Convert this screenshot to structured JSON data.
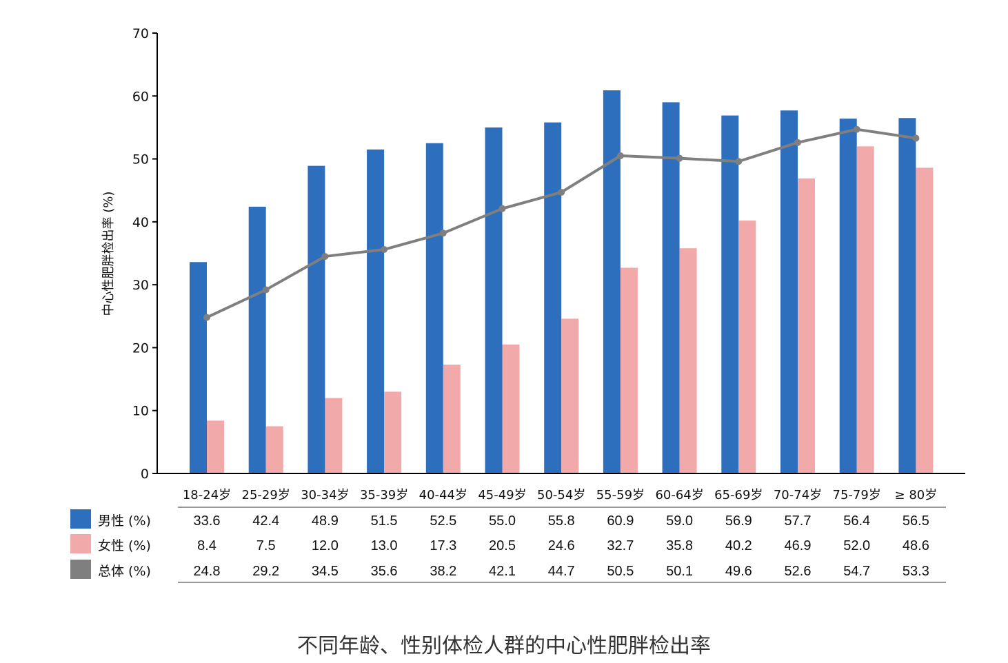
{
  "caption": "不同年龄、性别体检人群的中心性肥胖检出率",
  "colors": {
    "male": "#2e6fbd",
    "female": "#f2a9a9",
    "total": "#7f7f7f",
    "axis": "#000000"
  },
  "chart_data": {
    "type": "bar",
    "title": "",
    "xlabel": "",
    "ylabel": "中心性肥胖检出率 (%)",
    "ylim": [
      0,
      70
    ],
    "yticks": [
      0,
      10,
      20,
      30,
      40,
      50,
      60,
      70
    ],
    "categories": [
      "18-24岁",
      "25-29岁",
      "30-34岁",
      "35-39岁",
      "40-44岁",
      "45-49岁",
      "50-54岁",
      "55-59岁",
      "60-64岁",
      "65-69岁",
      "70-74岁",
      "75-79岁",
      "≥ 80岁"
    ],
    "series": [
      {
        "name": "男性 (%)",
        "kind": "bar",
        "values": [
          33.6,
          42.4,
          48.9,
          51.5,
          52.5,
          55.0,
          55.8,
          60.9,
          59.0,
          56.9,
          57.7,
          56.4,
          56.5
        ]
      },
      {
        "name": "女性 (%)",
        "kind": "bar",
        "values": [
          8.4,
          7.5,
          12.0,
          13.0,
          17.3,
          20.5,
          24.6,
          32.7,
          35.8,
          40.2,
          46.9,
          52.0,
          48.6
        ]
      },
      {
        "name": "总体 (%)",
        "kind": "line",
        "values": [
          24.8,
          29.2,
          34.5,
          35.6,
          38.2,
          42.1,
          44.7,
          50.5,
          50.1,
          49.6,
          52.6,
          54.7,
          53.3
        ]
      }
    ],
    "grid": false,
    "legend": "bottom-left data table"
  }
}
